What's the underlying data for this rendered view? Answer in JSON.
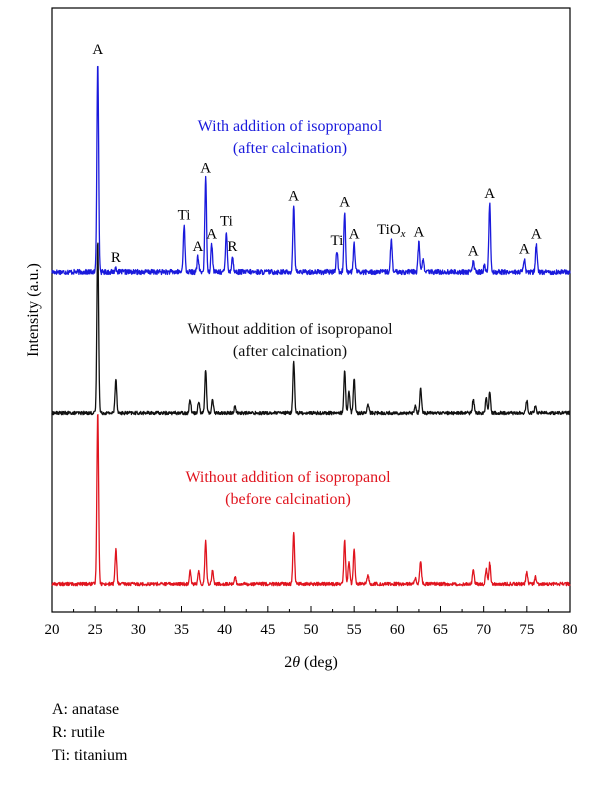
{
  "chart_data": {
    "type": "line",
    "xlabel_prefix": "2",
    "xlabel_symbol": "θ",
    "xlabel_suffix": " (deg)",
    "ylabel": "Intensity (a.u.)",
    "xlim": [
      20,
      80
    ],
    "xticks": [
      20,
      25,
      30,
      35,
      40,
      45,
      50,
      55,
      60,
      65,
      70,
      75,
      80
    ],
    "y_tick_labels": "none",
    "grid": false,
    "series": [
      {
        "label_lines": [
          "With addition of isopropanol",
          "(after calcination)"
        ],
        "color": "#1a1adc",
        "noise": 1.2,
        "peaks": [
          {
            "x": 25.3,
            "h": 100
          },
          {
            "x": 27.4,
            "h": 2
          },
          {
            "x": 35.3,
            "h": 22
          },
          {
            "x": 36.9,
            "h": 7
          },
          {
            "x": 37.8,
            "h": 44
          },
          {
            "x": 38.5,
            "h": 13
          },
          {
            "x": 40.2,
            "h": 19
          },
          {
            "x": 40.9,
            "h": 7
          },
          {
            "x": 48.0,
            "h": 31
          },
          {
            "x": 53.0,
            "h": 10
          },
          {
            "x": 53.9,
            "h": 28
          },
          {
            "x": 55.0,
            "h": 13
          },
          {
            "x": 59.3,
            "h": 15
          },
          {
            "x": 62.5,
            "h": 14
          },
          {
            "x": 63.0,
            "h": 6
          },
          {
            "x": 68.8,
            "h": 5
          },
          {
            "x": 70.1,
            "h": 3
          },
          {
            "x": 70.7,
            "h": 32
          },
          {
            "x": 74.7,
            "h": 6
          },
          {
            "x": 76.1,
            "h": 13
          }
        ],
        "annotations": [
          {
            "x": 25.3,
            "text": "A"
          },
          {
            "x": 27.4,
            "text": "R"
          },
          {
            "x": 35.3,
            "text": "Ti"
          },
          {
            "x": 36.9,
            "text": "A"
          },
          {
            "x": 37.8,
            "text": "A"
          },
          {
            "x": 38.5,
            "text": "A"
          },
          {
            "x": 40.2,
            "text": "Ti"
          },
          {
            "x": 40.9,
            "text": "R"
          },
          {
            "x": 48.0,
            "text": "A"
          },
          {
            "x": 53.0,
            "text": "Ti"
          },
          {
            "x": 53.9,
            "text": "A"
          },
          {
            "x": 55.0,
            "text": "A"
          },
          {
            "x": 59.3,
            "text": "TiO",
            "sub": "x"
          },
          {
            "x": 62.5,
            "text": "A"
          },
          {
            "x": 68.8,
            "text": "A"
          },
          {
            "x": 70.7,
            "text": "A"
          },
          {
            "x": 74.7,
            "text": "A"
          },
          {
            "x": 76.1,
            "text": "A"
          }
        ]
      },
      {
        "label_lines": [
          "Without addition of isopropanol",
          "(after calcination)"
        ],
        "color": "#111111",
        "noise": 1.0,
        "peaks": [
          {
            "x": 25.3,
            "h": 100
          },
          {
            "x": 27.4,
            "h": 20
          },
          {
            "x": 36.0,
            "h": 8
          },
          {
            "x": 37.0,
            "h": 7
          },
          {
            "x": 37.8,
            "h": 25
          },
          {
            "x": 38.6,
            "h": 8
          },
          {
            "x": 41.2,
            "h": 4
          },
          {
            "x": 48.0,
            "h": 30
          },
          {
            "x": 53.9,
            "h": 25
          },
          {
            "x": 54.4,
            "h": 13
          },
          {
            "x": 55.0,
            "h": 20
          },
          {
            "x": 56.6,
            "h": 5
          },
          {
            "x": 62.1,
            "h": 4
          },
          {
            "x": 62.7,
            "h": 14
          },
          {
            "x": 68.8,
            "h": 8
          },
          {
            "x": 70.3,
            "h": 9
          },
          {
            "x": 70.7,
            "h": 12
          },
          {
            "x": 75.0,
            "h": 7
          },
          {
            "x": 76.0,
            "h": 4
          }
        ],
        "annotations": []
      },
      {
        "label_lines": [
          "Without addition of isopropanol",
          "(before calcination)"
        ],
        "color": "#e0141e",
        "noise": 1.0,
        "peaks": [
          {
            "x": 25.3,
            "h": 100
          },
          {
            "x": 27.4,
            "h": 20
          },
          {
            "x": 36.0,
            "h": 8
          },
          {
            "x": 37.0,
            "h": 7
          },
          {
            "x": 37.8,
            "h": 25
          },
          {
            "x": 38.6,
            "h": 8
          },
          {
            "x": 41.2,
            "h": 4
          },
          {
            "x": 48.0,
            "h": 30
          },
          {
            "x": 53.9,
            "h": 25
          },
          {
            "x": 54.4,
            "h": 13
          },
          {
            "x": 55.0,
            "h": 20
          },
          {
            "x": 56.6,
            "h": 5
          },
          {
            "x": 62.1,
            "h": 4
          },
          {
            "x": 62.7,
            "h": 14
          },
          {
            "x": 68.8,
            "h": 8
          },
          {
            "x": 70.3,
            "h": 9
          },
          {
            "x": 70.7,
            "h": 12
          },
          {
            "x": 75.0,
            "h": 7
          },
          {
            "x": 76.0,
            "h": 4
          }
        ],
        "annotations": []
      }
    ]
  },
  "legend": {
    "items": [
      "A: anatase",
      "R: rutile",
      "Ti: titanium"
    ]
  }
}
